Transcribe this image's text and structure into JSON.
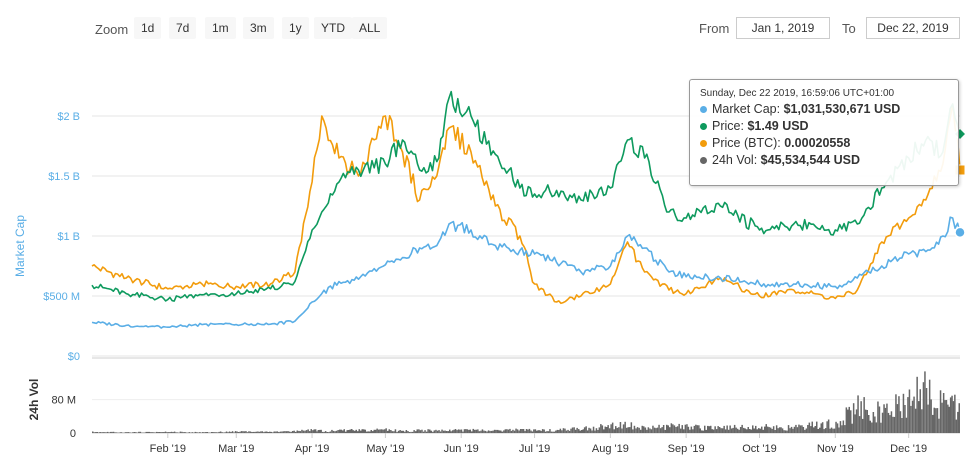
{
  "toolbar": {
    "zoom_label": "Zoom",
    "zoom_buttons": [
      "1d",
      "7d",
      "1m",
      "3m",
      "1y",
      "YTD",
      "ALL"
    ],
    "from_label": "From",
    "from_value": "Jan 1, 2019",
    "to_label": "To",
    "to_value": "Dec 22, 2019"
  },
  "tooltip": {
    "header": "Sunday, Dec 22 2019, 16:59:06 UTC+01:00",
    "rows": [
      {
        "label": "Market Cap:",
        "value": "$1,031,530,671 USD",
        "color": "#5aaee6"
      },
      {
        "label": "Price:",
        "value": "$1.49 USD",
        "color": "#0e9a5e"
      },
      {
        "label": "Price (BTC):",
        "value": "0.00020558",
        "color": "#f29c0c"
      },
      {
        "label": "24h Vol:",
        "value": "$45,534,544 USD",
        "color": "#666666"
      }
    ]
  },
  "colors": {
    "market_cap": "#5aaee6",
    "price_usd": "#0e9a5e",
    "price_btc": "#f29c0c",
    "volume": "#666666"
  },
  "chart_data": {
    "type": "line",
    "title": "",
    "main_axis": {
      "label": "Market Cap",
      "ticks": [
        "$500 M",
        "$1 B",
        "$1.5 B",
        "$2 B"
      ],
      "ylim": [
        0,
        2500000000
      ]
    },
    "volume_axis": {
      "label": "24h Vol",
      "ticks": [
        "0",
        "80 M"
      ],
      "ylim": [
        0,
        180000000
      ]
    },
    "main_zero_label": "$0",
    "x_tick_labels": [
      "Feb '19",
      "Mar '19",
      "Apr '19",
      "May '19",
      "Jun '19",
      "Jul '19",
      "Aug '19",
      "Sep '19",
      "Oct '19",
      "Nov '19",
      "Dec '19"
    ],
    "xlim": [
      "2019-01-01",
      "2019-12-22"
    ],
    "x": [
      "2019-01-01",
      "2019-01-15",
      "2019-02-01",
      "2019-02-15",
      "2019-03-01",
      "2019-03-15",
      "2019-03-25",
      "2019-04-01",
      "2019-04-05",
      "2019-04-12",
      "2019-04-20",
      "2019-05-01",
      "2019-05-08",
      "2019-05-15",
      "2019-05-22",
      "2019-05-27",
      "2019-06-05",
      "2019-06-15",
      "2019-06-25",
      "2019-07-01",
      "2019-07-10",
      "2019-07-20",
      "2019-08-01",
      "2019-08-08",
      "2019-08-15",
      "2019-08-25",
      "2019-09-01",
      "2019-09-15",
      "2019-10-01",
      "2019-10-15",
      "2019-11-01",
      "2019-11-10",
      "2019-11-20",
      "2019-12-01",
      "2019-12-08",
      "2019-12-15",
      "2019-12-19",
      "2019-12-22"
    ],
    "series": [
      {
        "name": "Market Cap",
        "axis": "main",
        "values": [
          280,
          255,
          240,
          262,
          262,
          265,
          290,
          450,
          520,
          620,
          640,
          760,
          820,
          900,
          920,
          1100,
          1050,
          920,
          880,
          850,
          780,
          700,
          750,
          1000,
          900,
          700,
          660,
          650,
          600,
          600,
          580,
          650,
          750,
          850,
          870,
          1000,
          1150,
          1030
        ]
      },
      {
        "name": "Price",
        "axis": "main",
        "values": [
          590,
          520,
          470,
          510,
          520,
          560,
          620,
          1050,
          1200,
          1450,
          1550,
          1600,
          1800,
          1550,
          1620,
          2150,
          2000,
          1680,
          1400,
          1350,
          1380,
          1300,
          1400,
          1800,
          1650,
          1200,
          1150,
          1250,
          1050,
          1100,
          1050,
          1100,
          1400,
          1650,
          1800,
          1700,
          2100,
          1850
        ]
      },
      {
        "name": "Price (BTC)",
        "axis": "main",
        "values": [
          750,
          650,
          560,
          600,
          580,
          600,
          700,
          1450,
          2000,
          1650,
          1500,
          2000,
          1700,
          1300,
          1500,
          1900,
          1700,
          1250,
          1000,
          600,
          450,
          500,
          600,
          950,
          700,
          550,
          520,
          650,
          500,
          550,
          480,
          550,
          950,
          1150,
          1300,
          1600,
          2100,
          1550
        ]
      },
      {
        "name": "24h Vol",
        "axis": "volume",
        "values": [
          3,
          2,
          3,
          2,
          4,
          3,
          5,
          8,
          6,
          7,
          8,
          9,
          6,
          8,
          7,
          8,
          8,
          6,
          10,
          8,
          9,
          12,
          20,
          25,
          14,
          20,
          17,
          15,
          18,
          16,
          30,
          75,
          60,
          90,
          140,
          80,
          110,
          45
        ]
      }
    ]
  }
}
